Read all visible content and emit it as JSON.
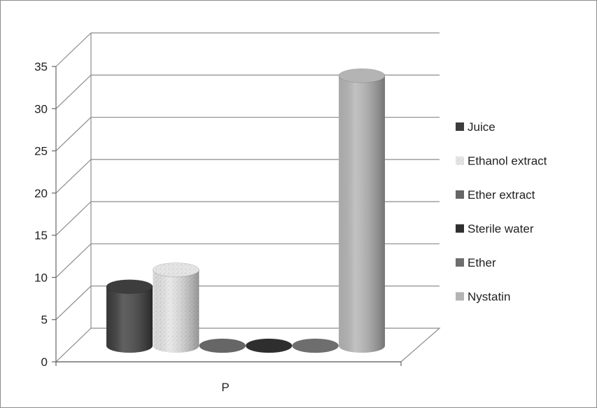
{
  "chart_data": {
    "type": "bar",
    "style": "3d-cylinder",
    "categories": [
      "P"
    ],
    "series": [
      {
        "name": "Juice",
        "values": [
          7
        ],
        "color": "#3d3d3d",
        "texture": "solid"
      },
      {
        "name": "Ethanol extract",
        "values": [
          9
        ],
        "color": "#dcdcdc",
        "texture": "speckled"
      },
      {
        "name": "Ether extract",
        "values": [
          0
        ],
        "color": "#666666",
        "texture": "solid"
      },
      {
        "name": "Sterile water",
        "values": [
          0
        ],
        "color": "#2e2e2e",
        "texture": "solid"
      },
      {
        "name": "Ether",
        "values": [
          0
        ],
        "color": "#6e6e6e",
        "texture": "solid"
      },
      {
        "name": "Nystatin",
        "values": [
          32
        ],
        "color": "#b4b4b4",
        "texture": "solid"
      }
    ],
    "ylim": [
      0,
      35
    ],
    "yticks": [
      "0",
      "5",
      "10",
      "15",
      "20",
      "25",
      "30",
      "35"
    ],
    "grid": true,
    "legend_position": "right"
  }
}
